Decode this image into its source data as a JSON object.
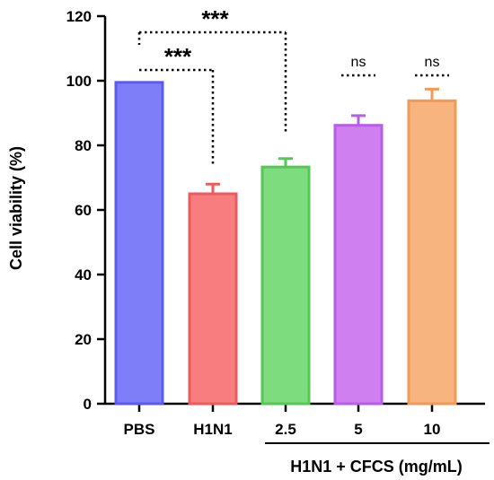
{
  "chart_data": {
    "type": "bar",
    "categories": [
      "PBS",
      "H1N1",
      "2.5",
      "5",
      "10"
    ],
    "values": [
      99.5,
      65.0,
      73.3,
      86.2,
      93.8
    ],
    "errors": [
      0,
      3.0,
      2.6,
      3.0,
      3.6
    ],
    "colors": {
      "fill": [
        "#7d7ef8",
        "#f87d7e",
        "#7ddc7d",
        "#d07ff0",
        "#f8b47e"
      ],
      "stroke": [
        "#5a5cf0",
        "#ee5a5c",
        "#56c756",
        "#b65ee4",
        "#f09a55"
      ]
    },
    "xlabel": "",
    "ylabel": "Cell viability (%)",
    "ylim": [
      0,
      120
    ],
    "yticks": [
      0,
      20,
      40,
      60,
      80,
      100,
      120
    ],
    "group_label": "H1N1 + CFCS (mg/mL)",
    "significance": [
      {
        "label": "***",
        "from": "PBS",
        "to": "H1N1"
      },
      {
        "label": "***",
        "from": "PBS",
        "to": "2.5"
      },
      {
        "label": "ns",
        "over": "5"
      },
      {
        "label": "ns",
        "over": "10"
      }
    ]
  }
}
